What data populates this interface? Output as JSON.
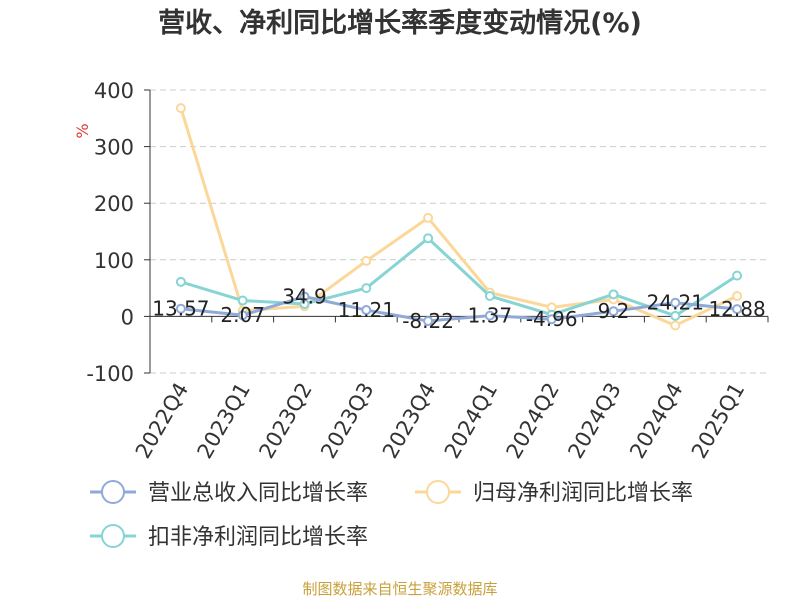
{
  "colors": {
    "revenue": "#8FAAD9",
    "net_profit": "#FBD899",
    "deducted_net_profit": "#86D4D3",
    "title": "#333333",
    "axis_text": "#333333",
    "unit": "#E03A3A",
    "grid": "#CCCCCC",
    "axis_line": "#333333",
    "source": "#C9A13B"
  },
  "chart_data": {
    "type": "line",
    "title": "营收、净利同比增长率季度变动情况(%)",
    "ylabel": "%",
    "xlabel": "",
    "categories": [
      "2022Q4",
      "2023Q1",
      "2023Q2",
      "2023Q3",
      "2023Q4",
      "2024Q1",
      "2024Q2",
      "2024Q3",
      "2024Q4",
      "2025Q1"
    ],
    "ylim": [
      -100,
      400
    ],
    "yticks": [
      -100,
      0,
      100,
      200,
      300,
      400
    ],
    "grid": true,
    "legend_position": "bottom",
    "series": [
      {
        "name": "营业总收入同比增长率",
        "values": [
          13.57,
          2.07,
          34.9,
          11.21,
          -8.22,
          1.37,
          -4.96,
          9.2,
          24.21,
          12.88
        ],
        "data_labels": [
          "13.57",
          "2.07",
          "34.9",
          "11.21",
          "-8.22",
          "1.37",
          "-4.96",
          "9.2",
          "24.21",
          "12.88"
        ]
      },
      {
        "name": "归母净利润同比增长率",
        "values": [
          368,
          10,
          18,
          98,
          174,
          42,
          16,
          30,
          -16,
          36
        ]
      },
      {
        "name": "扣非净利润同比增长率",
        "values": [
          61,
          28,
          22,
          50,
          138,
          36,
          3,
          39,
          1,
          72
        ]
      }
    ]
  },
  "source_text": "制图数据来自恒生聚源数据库"
}
